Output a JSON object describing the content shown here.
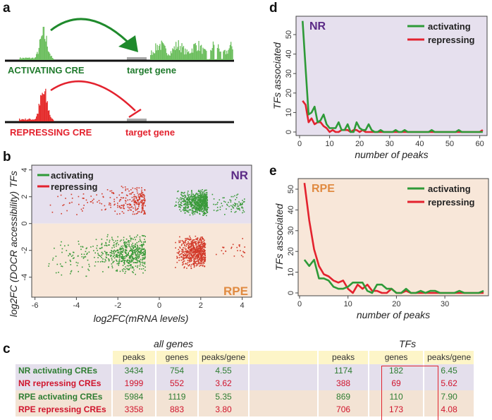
{
  "panel_labels": {
    "a": "a",
    "b": "b",
    "c": "c",
    "d": "d",
    "e": "e"
  },
  "colors": {
    "activating": "#2e9a38",
    "repressing": "#e3222e",
    "nr_bg": "#e6e0ee",
    "rpe_bg": "#f8e7d9",
    "nr_text": "#5b2a86",
    "rpe_text": "#e08a40",
    "activating_peak": "#6dbf5f",
    "repressing_peak": "#e52b2b",
    "target": "#a8a8a8"
  },
  "panel_a": {
    "activating_label": "ACTIVATING CRE",
    "repressing_label": "REPRESSING CRE",
    "target_gene_label": "target gene"
  },
  "chart_data": [
    {
      "id": "b",
      "type": "scatter",
      "xlabel": "log2FC(mRNA levels)",
      "ylabel": "log2FC (DOCR accessibility)",
      "ylabel_extra": "TFs",
      "xlim": [
        -6.2,
        4.5
      ],
      "ylim": [
        -5.6,
        4.2
      ],
      "xticks": [
        -6,
        -4,
        -2,
        0,
        2,
        4
      ],
      "yticks": [
        -4,
        -2,
        0,
        2,
        4
      ],
      "regions": [
        {
          "label": "NR",
          "y": [
            0,
            4.2
          ]
        },
        {
          "label": "RPE",
          "y": [
            -5.6,
            0
          ]
        }
      ],
      "legend": [
        "activating",
        "repressing"
      ],
      "clusters": [
        {
          "series": "repressing",
          "region": "NR",
          "x": [
            -5.8,
            -2.6
          ],
          "y": [
            0.7,
            2.4
          ],
          "n": 45
        },
        {
          "series": "repressing",
          "region": "NR",
          "x": [
            -2.6,
            -0.7
          ],
          "y": [
            0.6,
            2.9
          ],
          "n": 220
        },
        {
          "series": "activating",
          "region": "NR",
          "x": [
            0.7,
            2.3
          ],
          "y": [
            0.6,
            2.6
          ],
          "n": 650
        },
        {
          "series": "activating",
          "region": "NR",
          "x": [
            2.3,
            4.1
          ],
          "y": [
            0.6,
            2.4
          ],
          "n": 80
        },
        {
          "series": "activating",
          "region": "RPE",
          "x": [
            -5.8,
            -3.4
          ],
          "y": [
            -4.0,
            -1.0
          ],
          "n": 70
        },
        {
          "series": "activating",
          "region": "RPE",
          "x": [
            -3.4,
            -0.7
          ],
          "y": [
            -3.8,
            -0.7
          ],
          "n": 520
        },
        {
          "series": "repressing",
          "region": "RPE",
          "x": [
            0.7,
            2.2
          ],
          "y": [
            -3.4,
            -0.8
          ],
          "n": 600
        },
        {
          "series": "repressing",
          "region": "RPE",
          "x": [
            2.2,
            4.1
          ],
          "y": [
            -2.6,
            -0.9
          ],
          "n": 25
        }
      ]
    },
    {
      "id": "d",
      "type": "line",
      "region_label": "NR",
      "xlabel": "number of peaks",
      "ylabel": "TFs associated",
      "xlim": [
        0,
        61
      ],
      "ylim": [
        0,
        58
      ],
      "xticks": [
        0,
        10,
        20,
        30,
        40,
        50,
        60
      ],
      "yticks": [
        0,
        10,
        20,
        30,
        40,
        50
      ],
      "legend_placement": "top-right",
      "series": [
        {
          "name": "activating",
          "x": [
            1,
            2,
            3,
            4,
            5,
            6,
            7,
            8,
            9,
            10,
            11,
            12,
            13,
            14,
            15,
            16,
            17,
            18,
            19,
            20,
            21,
            22,
            23,
            24,
            25,
            26,
            27,
            28,
            31,
            32,
            33,
            34,
            35,
            36,
            43,
            44,
            45,
            52,
            53,
            54,
            61
          ],
          "y": [
            57,
            33,
            9,
            10,
            13,
            5,
            6,
            9,
            4,
            2,
            2,
            2,
            5,
            1,
            1,
            4,
            0,
            0,
            5,
            2,
            1,
            1,
            4,
            1,
            0,
            0,
            1,
            0,
            0,
            1,
            0,
            0,
            1,
            0,
            0,
            1,
            0,
            0,
            1,
            0,
            0
          ]
        },
        {
          "name": "repressing",
          "x": [
            1,
            2,
            3,
            4,
            5,
            6,
            7,
            8,
            9,
            10,
            11,
            12,
            13,
            14,
            15,
            16,
            17,
            18,
            19,
            20,
            21,
            22,
            60,
            61
          ],
          "y": [
            16,
            14,
            5,
            7,
            4,
            5,
            5,
            3,
            2,
            0,
            1,
            0,
            0,
            1,
            1,
            1,
            0,
            1,
            1,
            0,
            1,
            0,
            0,
            1
          ]
        }
      ]
    },
    {
      "id": "e",
      "type": "line",
      "region_label": "RPE",
      "xlabel": "number of peaks",
      "ylabel": "TFs associated",
      "xlim": [
        0,
        38
      ],
      "ylim": [
        0,
        54
      ],
      "xticks": [
        0,
        10,
        20,
        30
      ],
      "yticks": [
        0,
        10,
        20,
        30,
        40,
        50
      ],
      "legend_placement": "top-right",
      "series": [
        {
          "name": "activating",
          "x": [
            1,
            2,
            3,
            4,
            5,
            6,
            7,
            8,
            9,
            10,
            11,
            12,
            13,
            14,
            15,
            16,
            17,
            18,
            19,
            20,
            21,
            22,
            23,
            24,
            25,
            26,
            27,
            28,
            29,
            32,
            33,
            34,
            37,
            38
          ],
          "y": [
            16,
            13,
            16,
            7,
            7,
            6,
            3,
            2,
            2,
            3,
            5,
            5,
            5,
            1,
            0,
            4,
            4,
            2,
            2,
            0,
            0,
            2,
            0,
            0,
            1,
            0,
            1,
            1,
            0,
            0,
            1,
            0,
            0,
            1
          ]
        },
        {
          "name": "repressing",
          "x": [
            1,
            2,
            3,
            4,
            5,
            6,
            7,
            8,
            9,
            10,
            11,
            12,
            13,
            14,
            15,
            16,
            17,
            18,
            19,
            20,
            21,
            22,
            23,
            38
          ],
          "y": [
            53,
            35,
            21,
            13,
            9,
            8,
            6,
            5,
            6,
            2,
            0,
            4,
            2,
            4,
            1,
            1,
            0,
            0,
            2,
            0,
            0,
            1,
            0,
            0
          ]
        }
      ]
    },
    {
      "id": "c",
      "type": "table",
      "group_headers": [
        "all genes",
        "TFs"
      ],
      "columns": [
        "peaks",
        "genes",
        "peaks/gene",
        "",
        "peaks",
        "genes",
        "peaks/gene"
      ],
      "rows": [
        {
          "label": "NR activating CREs",
          "kind": "activating",
          "region": "NR",
          "values": [
            "3434",
            "754",
            "4.55",
            "",
            "1174",
            "182",
            "6.45"
          ]
        },
        {
          "label": "NR repressing CREs",
          "kind": "repressing",
          "region": "NR",
          "values": [
            "1999",
            "552",
            "3.62",
            "",
            "388",
            "69",
            "5.62"
          ]
        },
        {
          "label": "RPE activating CREs",
          "kind": "activating",
          "region": "RPE",
          "values": [
            "5984",
            "1119",
            "5.35",
            "",
            "869",
            "110",
            "7.90"
          ]
        },
        {
          "label": "RPE repressing CREs",
          "kind": "repressing",
          "region": "RPE",
          "values": [
            "3358",
            "883",
            "3.80",
            "",
            "706",
            "173",
            "4.08"
          ]
        }
      ],
      "highlighted_column": "TFs genes"
    }
  ]
}
